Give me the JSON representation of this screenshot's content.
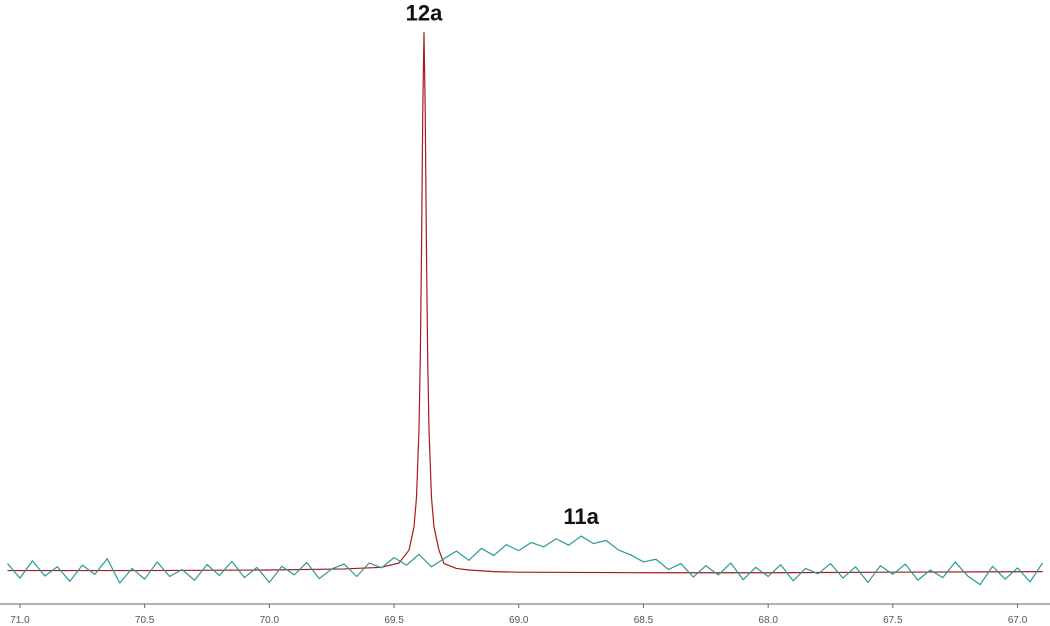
{
  "chart_data": {
    "type": "line",
    "xlim": [
      71.08,
      66.87
    ],
    "ylim": [
      -6,
      106
    ],
    "xticks": [
      {
        "value": 71,
        "label": "71.0"
      },
      70.5,
      {
        "value": 70,
        "label": "70.0"
      },
      69.5,
      {
        "value": 69,
        "label": "69.0"
      },
      68.5,
      {
        "value": 68,
        "label": "68.0"
      },
      67.5,
      {
        "value": 67,
        "label": "67.0"
      }
    ],
    "series": [
      {
        "name": "12a",
        "color": "#a51a1a",
        "x": [
          71.05,
          70.5,
          70.0,
          69.7,
          69.55,
          69.48,
          69.44,
          69.42,
          69.41,
          69.4,
          69.395,
          69.39,
          69.385,
          69.38,
          69.375,
          69.37,
          69.365,
          69.36,
          69.35,
          69.34,
          69.32,
          69.3,
          69.25,
          69.2,
          69.1,
          69.0,
          68.5,
          68.0,
          67.5,
          66.9
        ],
        "values": [
          0.2,
          0.2,
          0.3,
          0.5,
          0.8,
          1.6,
          4.0,
          8.3,
          13.8,
          26.5,
          39,
          59,
          85,
          100,
          85,
          59,
          39,
          26.5,
          13.8,
          8.3,
          4.0,
          1.5,
          0.6,
          0.3,
          0.0,
          -0.1,
          -0.2,
          -0.2,
          -0.1,
          0.0
        ]
      },
      {
        "name": "11a",
        "color": "#2a9a98",
        "x": [
          71.05,
          71.0,
          70.95,
          70.9,
          70.85,
          70.8,
          70.75,
          70.7,
          70.65,
          70.6,
          70.55,
          70.5,
          70.45,
          70.4,
          70.35,
          70.3,
          70.25,
          70.2,
          70.15,
          70.1,
          70.05,
          70.0,
          69.95,
          69.9,
          69.85,
          69.8,
          69.75,
          69.7,
          69.65,
          69.6,
          69.55,
          69.5,
          69.45,
          69.4,
          69.35,
          69.3,
          69.25,
          69.2,
          69.15,
          69.1,
          69.05,
          69.0,
          68.95,
          68.9,
          68.85,
          68.8,
          68.75,
          68.7,
          68.65,
          68.6,
          68.55,
          68.5,
          68.45,
          68.4,
          68.35,
          68.3,
          68.25,
          68.2,
          68.15,
          68.1,
          68.05,
          68.0,
          67.95,
          67.9,
          67.85,
          67.8,
          67.75,
          67.7,
          67.65,
          67.6,
          67.55,
          67.5,
          67.45,
          67.4,
          67.35,
          67.3,
          67.25,
          67.2,
          67.15,
          67.1,
          67.05,
          67.0,
          66.95,
          66.9
        ],
        "values": [
          1.5,
          -1.2,
          2.0,
          -0.8,
          0.9,
          -1.8,
          1.2,
          -0.5,
          2.4,
          -2.1,
          0.6,
          -1.4,
          1.8,
          -0.9,
          0.4,
          -1.6,
          1.3,
          -0.7,
          1.9,
          -1.1,
          0.8,
          -2.0,
          1.0,
          -0.6,
          1.7,
          -1.3,
          0.5,
          1.4,
          -0.9,
          1.6,
          0.7,
          2.6,
          1.2,
          3.2,
          0.9,
          2.4,
          3.8,
          2.1,
          4.3,
          3.0,
          5.0,
          3.9,
          5.4,
          4.6,
          6.1,
          4.9,
          6.6,
          5.2,
          5.8,
          4.0,
          3.1,
          1.8,
          2.3,
          0.4,
          1.5,
          -1.0,
          1.1,
          -0.6,
          1.6,
          -1.5,
          0.8,
          -0.9,
          1.3,
          -1.7,
          0.6,
          -0.4,
          1.5,
          -1.2,
          0.9,
          -2.0,
          1.1,
          -0.5,
          1.4,
          -1.6,
          0.3,
          -1.1,
          1.8,
          -0.8,
          -2.4,
          1.0,
          -1.4,
          0.7,
          -1.9,
          1.6
        ]
      }
    ]
  }
}
